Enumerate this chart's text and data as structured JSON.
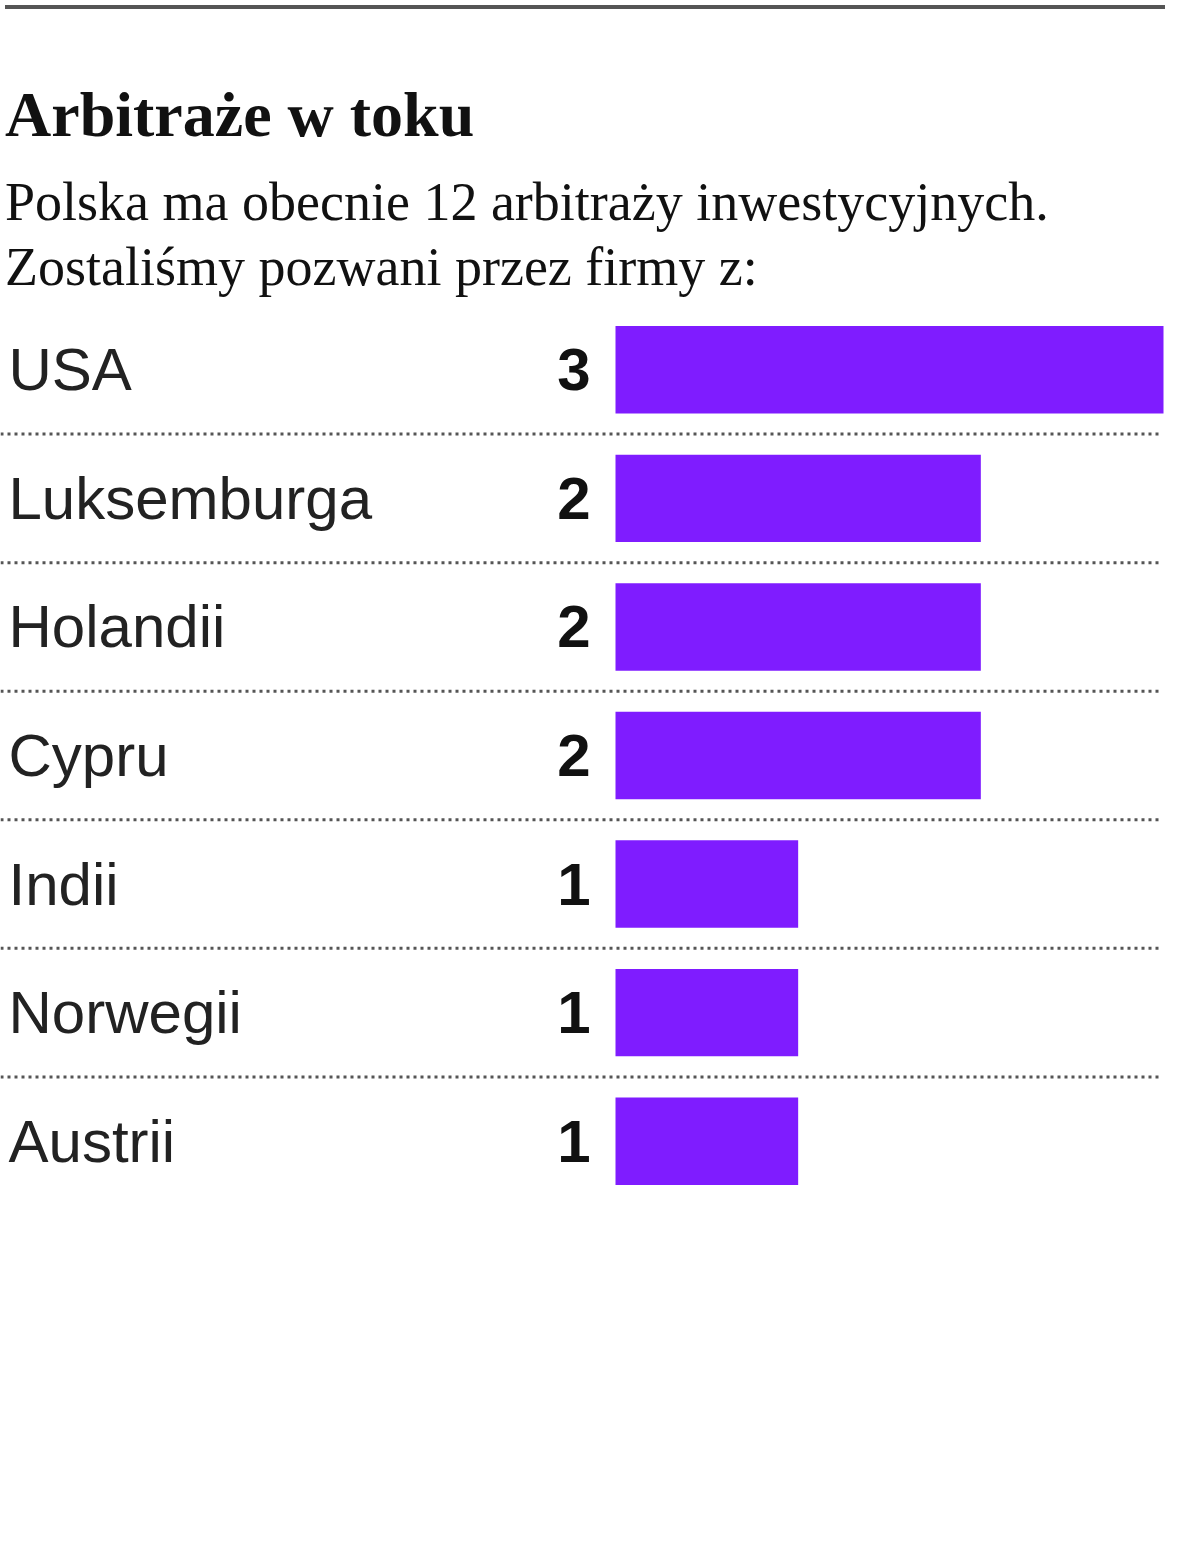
{
  "chart_data": {
    "type": "bar",
    "orientation": "horizontal",
    "title": "Arbitraże w toku",
    "subtitle": "Polska ma obecnie 12 arbitraży inwestycyjnych. Zostaliśmy pozwani przez firmy z:",
    "categories": [
      "USA",
      "Luksemburga",
      "Holandii",
      "Cypru",
      "Indii",
      "Norwegii",
      "Austrii"
    ],
    "values": [
      3,
      2,
      2,
      2,
      1,
      1,
      1
    ],
    "color": "#7f1cff",
    "data_labels": true
  }
}
